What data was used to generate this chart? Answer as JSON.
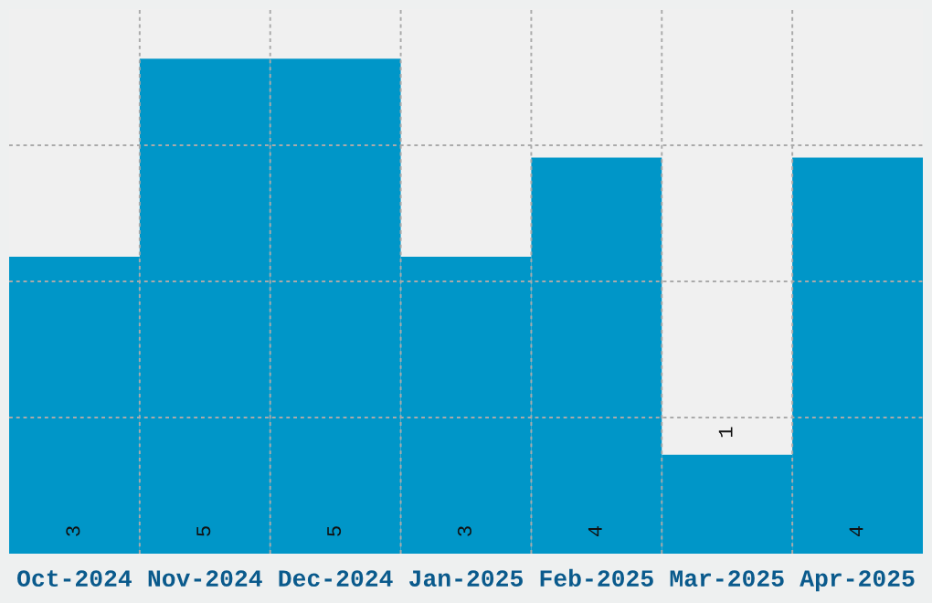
{
  "chart_data": {
    "type": "bar",
    "categories": [
      "Oct-2024",
      "Nov-2024",
      "Dec-2024",
      "Jan-2025",
      "Feb-2025",
      "Mar-2025",
      "Apr-2025"
    ],
    "values": [
      3,
      5,
      5,
      3,
      4,
      1,
      4
    ],
    "color": "#0096c8",
    "ylim": [
      0,
      5.5
    ],
    "yticks": [
      {
        "value": 1.375,
        "label": null
      },
      {
        "value": 2.75,
        "label": null
      },
      {
        "value": 4.125,
        "label": null
      }
    ],
    "tick_labels": "x",
    "grid": true,
    "data_labels": true
  }
}
